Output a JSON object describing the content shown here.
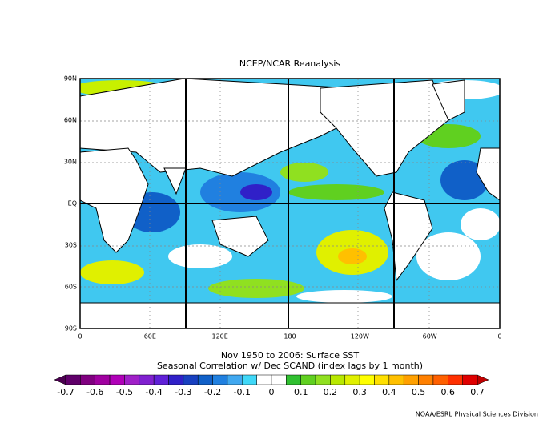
{
  "header": {
    "title": "NCEP/NCAR Reanalysis"
  },
  "map": {
    "lat_labels": [
      "90N",
      "60N",
      "30N",
      "EQ",
      "30S",
      "60S",
      "90S"
    ],
    "lon_labels": [
      "0",
      "60E",
      "120E",
      "180",
      "120W",
      "60W",
      "0"
    ]
  },
  "caption": {
    "line1": "Nov 1950 to 2006: Surface SST",
    "line2": "Seasonal Correlation w/ Dec SCAND (index lags by 1 month)"
  },
  "colorbar": {
    "lim": [
      -0.7,
      0.7
    ],
    "ticks": [
      -0.7,
      -0.6,
      -0.5,
      -0.4,
      -0.3,
      -0.2,
      -0.1,
      0,
      0.1,
      0.2,
      0.3,
      0.4,
      0.5,
      0.6,
      0.7
    ],
    "colors": [
      "#60006a",
      "#800080",
      "#a000a0",
      "#b000b8",
      "#a020c8",
      "#8020d0",
      "#6020d8",
      "#3020c8",
      "#1840c0",
      "#1060c8",
      "#2080e0",
      "#40a8f0",
      "#40d8f8",
      "#ffffff",
      "#ffffff",
      "#30c030",
      "#60d020",
      "#90e020",
      "#b8e800",
      "#e0f000",
      "#ffff00",
      "#ffe000",
      "#ffc000",
      "#ffa000",
      "#ff8000",
      "#ff6000",
      "#ff3000",
      "#e00000"
    ],
    "under": "#4b0050",
    "over": "#c00000"
  },
  "footer": "NOAA/ESRL Physical Sciences Division"
}
